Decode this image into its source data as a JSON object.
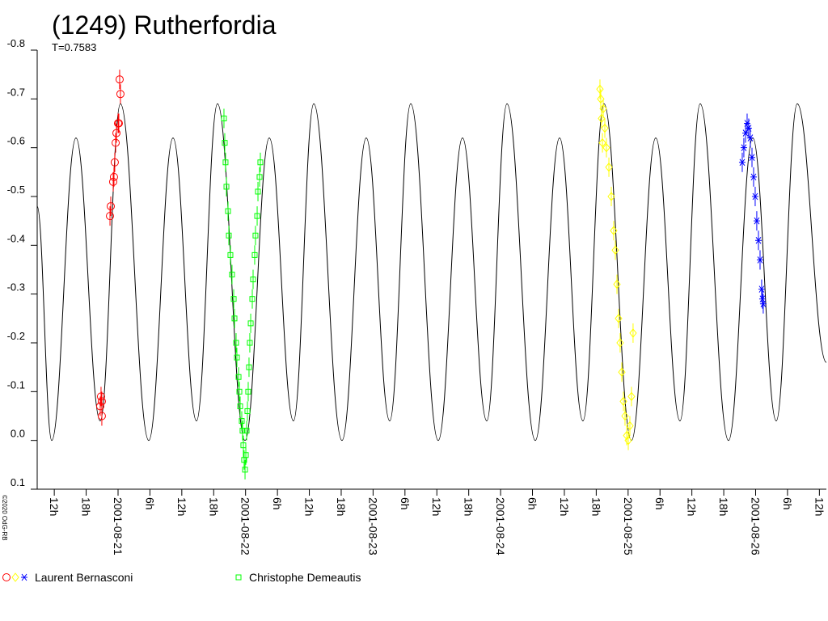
{
  "chart_data": {
    "type": "scatter",
    "title": "(1249) Rutherfordia",
    "subtitle": "T=0.7583",
    "credit": "©2020 OdG-RB",
    "xlim": [
      "2001-08-20T08:47",
      "2001-08-26T13:19"
    ],
    "ylim": [
      0.1,
      -0.8
    ],
    "yticks": [
      -0.8,
      -0.7,
      -0.6,
      -0.5,
      -0.4,
      -0.3,
      -0.2,
      -0.1,
      {
        "value": 0,
        "label": "0.0"
      },
      0.1
    ],
    "xticks": [
      {
        "value": "2001-08-20T12:00",
        "label": "12h"
      },
      {
        "value": "2001-08-20T18:00",
        "label": "18h"
      },
      {
        "value": "2001-08-21T00:00",
        "label": "2001-08-21"
      },
      {
        "value": "2001-08-21T06:00",
        "label": "6h"
      },
      {
        "value": "2001-08-21T12:00",
        "label": "12h"
      },
      {
        "value": "2001-08-21T18:00",
        "label": "18h"
      },
      {
        "value": "2001-08-22T00:00",
        "label": "2001-08-22"
      },
      {
        "value": "2001-08-22T06:00",
        "label": "6h"
      },
      {
        "value": "2001-08-22T12:00",
        "label": "12h"
      },
      {
        "value": "2001-08-22T18:00",
        "label": "18h"
      },
      {
        "value": "2001-08-23T00:00",
        "label": "2001-08-23"
      },
      {
        "value": "2001-08-23T06:00",
        "label": "6h"
      },
      {
        "value": "2001-08-23T12:00",
        "label": "12h"
      },
      {
        "value": "2001-08-23T18:00",
        "label": "18h"
      },
      {
        "value": "2001-08-24T00:00",
        "label": "2001-08-24"
      },
      {
        "value": "2001-08-24T06:00",
        "label": "6h"
      },
      {
        "value": "2001-08-24T12:00",
        "label": "12h"
      },
      {
        "value": "2001-08-24T18:00",
        "label": "18h"
      },
      {
        "value": "2001-08-25T00:00",
        "label": "2001-08-25"
      },
      {
        "value": "2001-08-25T06:00",
        "label": "6h"
      },
      {
        "value": "2001-08-25T12:00",
        "label": "12h"
      },
      {
        "value": "2001-08-25T18:00",
        "label": "18h"
      },
      {
        "value": "2001-08-26T00:00",
        "label": "2001-08-26"
      },
      {
        "value": "2001-08-26T06:00",
        "label": "6h"
      },
      {
        "value": "2001-08-26T12:00",
        "label": "12h"
      }
    ],
    "fit": {
      "color": "#000000",
      "x": [
        "2001-08-20T08:47",
        "2001-08-20T11:31",
        "2001-08-20T16:05",
        "2001-08-20T20:39",
        "2001-08-21T00:27",
        "2001-08-21T05:47",
        "2001-08-21T10:21",
        "2001-08-21T14:46",
        "2001-08-21T18:43",
        "2001-08-21T23:54",
        "2001-08-22T04:28",
        "2001-08-22T09:01",
        "2001-08-22T12:50",
        "2001-08-22T18:09",
        "2001-08-22T22:43",
        "2001-08-23T03:08",
        "2001-08-23T07:05",
        "2001-08-23T12:16",
        "2001-08-23T16:50",
        "2001-08-23T21:24",
        "2001-08-24T01:12",
        "2001-08-24T06:32",
        "2001-08-24T11:06",
        "2001-08-24T15:30",
        "2001-08-24T19:28",
        "2001-08-25T00:38",
        "2001-08-25T05:12",
        "2001-08-25T09:46",
        "2001-08-25T13:34",
        "2001-08-25T18:54",
        "2001-08-25T23:28",
        "2001-08-26T03:53",
        "2001-08-26T07:50",
        "2001-08-26T13:19"
      ],
      "values": [
        -0.48,
        0.0,
        -0.62,
        -0.04,
        -0.69,
        0.0,
        -0.62,
        -0.04,
        -0.69,
        0.0,
        -0.62,
        -0.04,
        -0.69,
        0.0,
        -0.62,
        -0.04,
        -0.69,
        0.0,
        -0.62,
        -0.04,
        -0.69,
        0.0,
        -0.62,
        -0.04,
        -0.69,
        0.0,
        -0.62,
        -0.04,
        -0.69,
        0.0,
        -0.62,
        -0.04,
        -0.69,
        -0.16
      ]
    },
    "series": [
      {
        "name": "Laurent Bernasconi",
        "sessions": [
          {
            "color": "#ff0000",
            "marker": "circle",
            "x": [
              "2001-08-20T20:39",
              "2001-08-20T20:48",
              "2001-08-20T20:57",
              "2001-08-20T20:57",
              "2001-08-20T22:29",
              "2001-08-20T22:38",
              "2001-08-20T23:05",
              "2001-08-20T23:14",
              "2001-08-20T23:23",
              "2001-08-20T23:33",
              "2001-08-20T23:42",
              "2001-08-21T00:00",
              "2001-08-21T00:09",
              "2001-08-21T00:18",
              "2001-08-21T00:27"
            ],
            "values": [
              -0.07,
              -0.09,
              -0.08,
              -0.05,
              -0.46,
              -0.48,
              -0.53,
              -0.54,
              -0.57,
              -0.61,
              -0.63,
              -0.65,
              -0.65,
              -0.74,
              -0.71
            ]
          },
          {
            "color": "#ffff00",
            "marker": "diamond",
            "x": [
              "2001-08-24T18:42",
              "2001-08-24T18:51",
              "2001-08-24T19:00",
              "2001-08-24T19:10",
              "2001-08-24T19:19",
              "2001-08-24T19:37",
              "2001-08-24T19:55",
              "2001-08-24T20:23",
              "2001-08-24T20:50",
              "2001-08-24T21:17",
              "2001-08-24T21:36",
              "2001-08-24T21:54",
              "2001-08-24T22:12",
              "2001-08-24T22:30",
              "2001-08-24T22:49",
              "2001-08-24T23:07",
              "2001-08-24T23:25",
              "2001-08-24T23:44",
              "2001-08-25T00:02",
              "2001-08-25T00:20",
              "2001-08-25T00:38",
              "2001-08-25T00:56"
            ],
            "values": [
              -0.72,
              -0.7,
              -0.66,
              -0.61,
              -0.68,
              -0.64,
              -0.6,
              -0.56,
              -0.5,
              -0.43,
              -0.39,
              -0.32,
              -0.25,
              -0.2,
              -0.14,
              -0.08,
              -0.05,
              -0.01,
              0.0,
              -0.03,
              -0.09,
              -0.22
            ]
          },
          {
            "color": "#0000ff",
            "marker": "star",
            "x": [
              "2001-08-25T21:29",
              "2001-08-25T21:47",
              "2001-08-25T22:06",
              "2001-08-25T22:24",
              "2001-08-25T22:42",
              "2001-08-25T23:00",
              "2001-08-25T23:19",
              "2001-08-25T23:37",
              "2001-08-25T23:55",
              "2001-08-26T00:13",
              "2001-08-26T00:32",
              "2001-08-26T00:50",
              "2001-08-26T01:08",
              "2001-08-26T01:17",
              "2001-08-26T01:26"
            ],
            "values": [
              -0.57,
              -0.6,
              -0.63,
              -0.65,
              -0.64,
              -0.62,
              -0.58,
              -0.54,
              -0.5,
              -0.45,
              -0.41,
              -0.37,
              -0.31,
              -0.29,
              -0.28
            ]
          }
        ]
      },
      {
        "name": "Christophe Demeautis",
        "sessions": [
          {
            "color": "#00ff00",
            "marker": "square",
            "x": [
              "2001-08-21T19:56",
              "2001-08-21T20:05",
              "2001-08-21T20:14",
              "2001-08-21T20:24",
              "2001-08-21T20:42",
              "2001-08-21T20:51",
              "2001-08-21T21:09",
              "2001-08-21T21:27",
              "2001-08-21T21:46",
              "2001-08-21T21:55",
              "2001-08-21T22:13",
              "2001-08-21T22:22",
              "2001-08-21T22:41",
              "2001-08-21T22:50",
              "2001-08-21T22:59",
              "2001-08-21T23:17",
              "2001-08-21T23:26",
              "2001-08-21T23:35",
              "2001-08-21T23:44",
              "2001-08-21T23:54",
              "2001-08-22T00:03",
              "2001-08-22T00:12",
              "2001-08-22T00:21",
              "2001-08-22T00:30",
              "2001-08-22T00:39",
              "2001-08-22T00:48",
              "2001-08-22T00:58",
              "2001-08-22T01:16",
              "2001-08-22T01:25",
              "2001-08-22T01:43",
              "2001-08-22T01:52",
              "2001-08-22T02:11",
              "2001-08-22T02:20",
              "2001-08-22T02:38",
              "2001-08-22T02:47"
            ],
            "values": [
              -0.66,
              -0.61,
              -0.57,
              -0.52,
              -0.47,
              -0.42,
              -0.38,
              -0.34,
              -0.29,
              -0.25,
              -0.2,
              -0.17,
              -0.13,
              -0.1,
              -0.07,
              -0.04,
              -0.02,
              0.01,
              0.04,
              0.06,
              0.03,
              -0.02,
              -0.06,
              -0.1,
              -0.15,
              -0.2,
              -0.24,
              -0.29,
              -0.33,
              -0.38,
              -0.42,
              -0.46,
              -0.51,
              -0.54,
              -0.57
            ]
          }
        ]
      }
    ]
  }
}
